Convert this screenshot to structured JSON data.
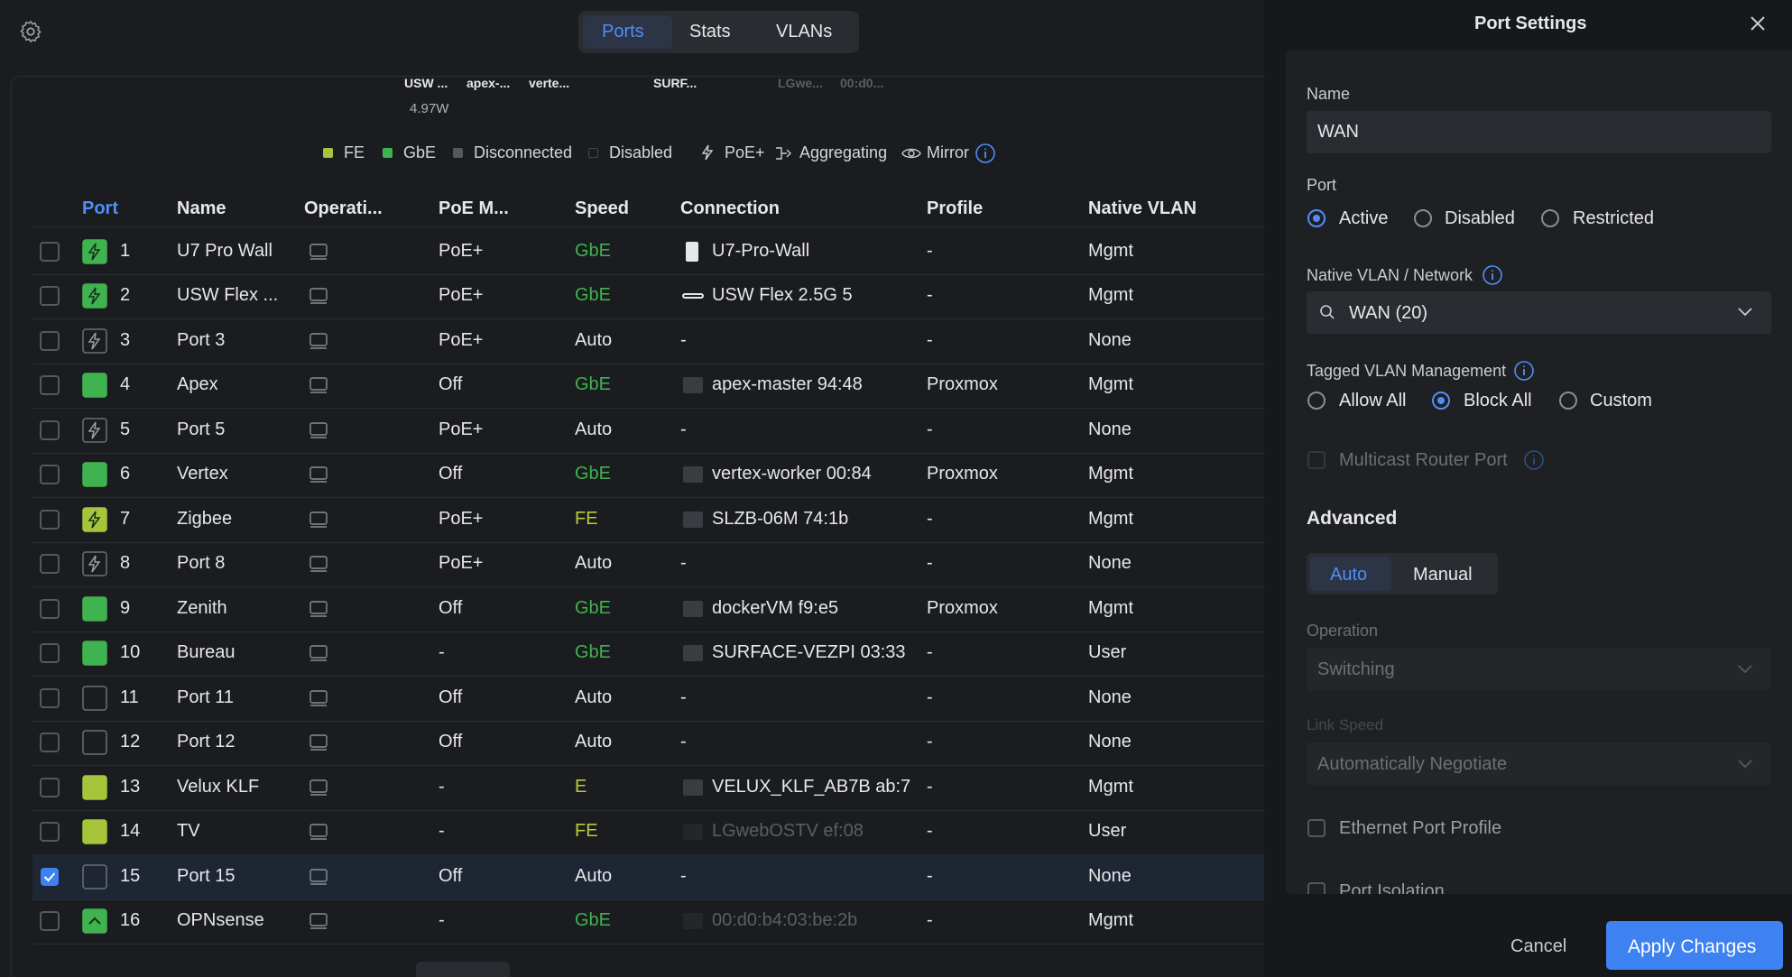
{
  "toolbar": {
    "tabs": [
      "Ports",
      "Stats",
      "VLANs"
    ]
  },
  "devices": {
    "labels": [
      "USW ...",
      "apex-...",
      "verte...",
      "SURF...",
      "LGwe...",
      "00:d0..."
    ],
    "power": "4.97W"
  },
  "legend": [
    "FE",
    "GbE",
    "Disconnected",
    "Disabled",
    "PoE+",
    "Aggregating",
    "Mirror"
  ],
  "table": {
    "headers": [
      "Port",
      "Name",
      "Operati...",
      "PoE M...",
      "Speed",
      "Connection",
      "Profile",
      "Native VLAN"
    ],
    "rows": [
      [
        1,
        "U7 Pro Wall",
        "PoE+",
        "GbE",
        "U7-Pro-Wall",
        "-",
        "Mgmt"
      ],
      [
        2,
        "USW Flex ...",
        "PoE+",
        "GbE",
        "USW Flex 2.5G 5",
        "-",
        "Mgmt"
      ],
      [
        3,
        "Port 3",
        "PoE+",
        "Auto",
        "-",
        "-",
        "None"
      ],
      [
        4,
        "Apex",
        "Off",
        "GbE",
        "apex-master 94:48",
        "Proxmox",
        "Mgmt"
      ],
      [
        5,
        "Port 5",
        "PoE+",
        "Auto",
        "-",
        "-",
        "None"
      ],
      [
        6,
        "Vertex",
        "Off",
        "GbE",
        "vertex-worker 00:84",
        "Proxmox",
        "Mgmt"
      ],
      [
        7,
        "Zigbee",
        "PoE+",
        "FE",
        "SLZB-06M 74:1b",
        "-",
        "Mgmt"
      ],
      [
        8,
        "Port 8",
        "PoE+",
        "Auto",
        "-",
        "-",
        "None"
      ],
      [
        9,
        "Zenith",
        "Off",
        "GbE",
        "dockerVM f9:e5",
        "Proxmox",
        "Mgmt"
      ],
      [
        10,
        "Bureau",
        "-",
        "GbE",
        "SURFACE-VEZPI 03:33",
        "-",
        "User"
      ],
      [
        11,
        "Port 11",
        "Off",
        "Auto",
        "-",
        "-",
        "None"
      ],
      [
        12,
        "Port 12",
        "Off",
        "Auto",
        "-",
        "-",
        "None"
      ],
      [
        13,
        "Velux KLF",
        "-",
        "E",
        "VELUX_KLF_AB7B ab:7",
        "-",
        "Mgmt"
      ],
      [
        14,
        "TV",
        "-",
        "FE",
        "LGwebOSTV ef:08",
        "-",
        "User"
      ],
      [
        15,
        "Port 15",
        "Off",
        "Auto",
        "-",
        "-",
        "None"
      ],
      [
        16,
        "OPNsense",
        "-",
        "GbE",
        "00:d0:b4:03:be:2b",
        "-",
        "Mgmt"
      ]
    ]
  },
  "panel": {
    "title": "Port Settings",
    "name_label": "Name",
    "name_value": "WAN",
    "port_label": "Port",
    "port_options": [
      "Active",
      "Disabled",
      "Restricted"
    ],
    "vlan_label": "Native VLAN / Network",
    "vlan_value": "WAN (20)",
    "tagged_label": "Tagged VLAN Management",
    "tagged_options": [
      "Allow All",
      "Block All",
      "Custom"
    ],
    "multicast": "Multicast Router Port",
    "advanced": "Advanced",
    "modes": [
      "Auto",
      "Manual"
    ],
    "operation_label": "Operation",
    "operation_value": "Switching",
    "speed_label": "Link Speed",
    "speed_value": "Automatically Negotiate",
    "profile": "Ethernet Port Profile",
    "isolation": "Port Isolation",
    "cancel": "Cancel",
    "apply": "Apply Changes"
  }
}
